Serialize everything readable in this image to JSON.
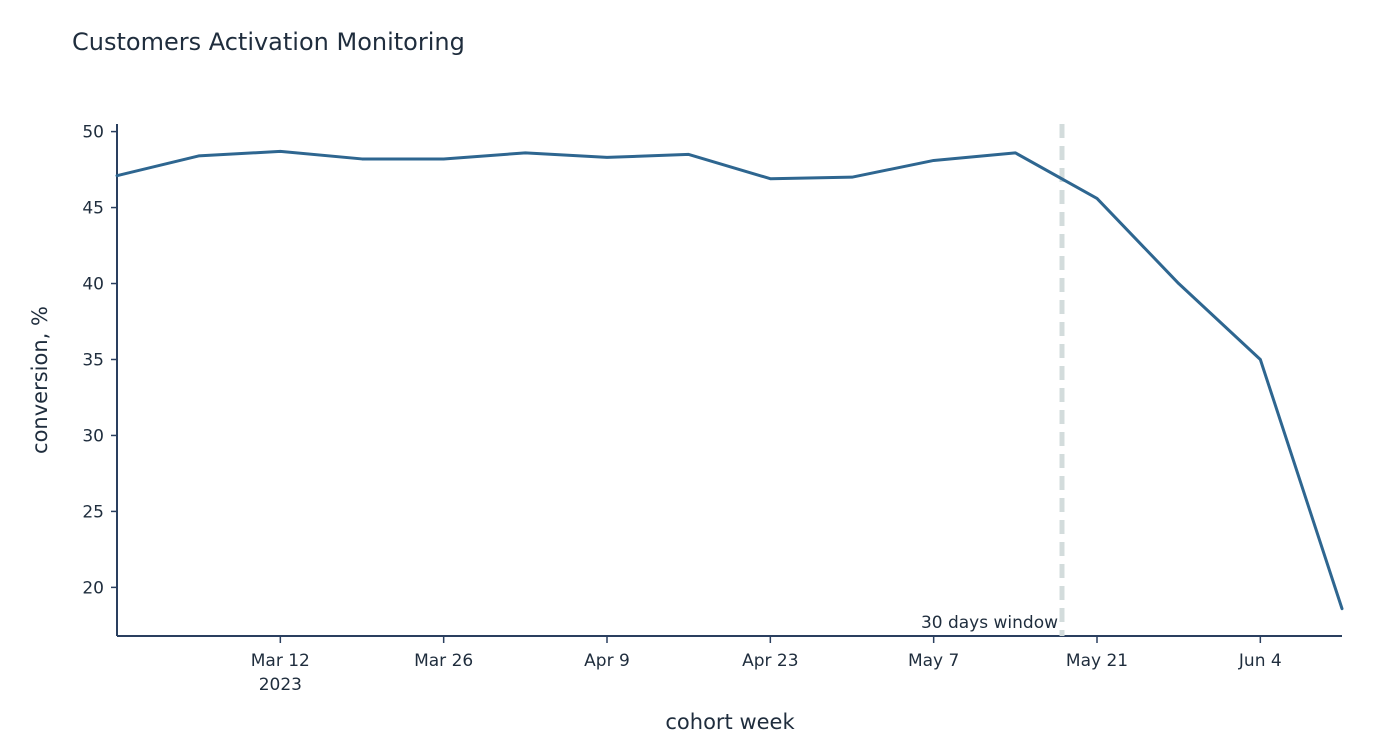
{
  "chart_data": {
    "type": "line",
    "title": "Customers Activation Monitoring",
    "xlabel": "cohort week",
    "ylabel": "conversion, %",
    "grid": false,
    "x": [
      "2023-02-26",
      "2023-03-05",
      "2023-03-12",
      "2023-03-19",
      "2023-03-26",
      "2023-04-02",
      "2023-04-09",
      "2023-04-16",
      "2023-04-23",
      "2023-04-30",
      "2023-05-07",
      "2023-05-14",
      "2023-05-21",
      "2023-05-28",
      "2023-06-04",
      "2023-06-11"
    ],
    "series": [
      {
        "values": [
          47.1,
          48.4,
          48.7,
          48.2,
          48.2,
          48.6,
          48.3,
          48.5,
          46.9,
          47.0,
          48.1,
          48.6,
          45.6,
          40.0,
          35.0,
          18.6
        ],
        "color": "#2e6690"
      }
    ],
    "xlim": [
      "2023-02-26",
      "2023-06-11"
    ],
    "ylim": [
      16.8,
      50.5
    ],
    "x_ticks": [
      {
        "date": "2023-03-12",
        "label": "Mar 12",
        "sublabel": "2023"
      },
      {
        "date": "2023-03-26",
        "label": "Mar 26",
        "sublabel": ""
      },
      {
        "date": "2023-04-09",
        "label": "Apr 9",
        "sublabel": ""
      },
      {
        "date": "2023-04-23",
        "label": "Apr 23",
        "sublabel": ""
      },
      {
        "date": "2023-05-07",
        "label": "May 7",
        "sublabel": ""
      },
      {
        "date": "2023-05-21",
        "label": "May 21",
        "sublabel": ""
      },
      {
        "date": "2023-06-04",
        "label": "Jun 4",
        "sublabel": ""
      }
    ],
    "y_ticks": [
      20,
      25,
      30,
      35,
      40,
      45,
      50
    ],
    "annotations": [
      {
        "type": "vline",
        "x": "2023-05-18",
        "label": "30 days window",
        "color": "#d3dcdc"
      }
    ]
  }
}
